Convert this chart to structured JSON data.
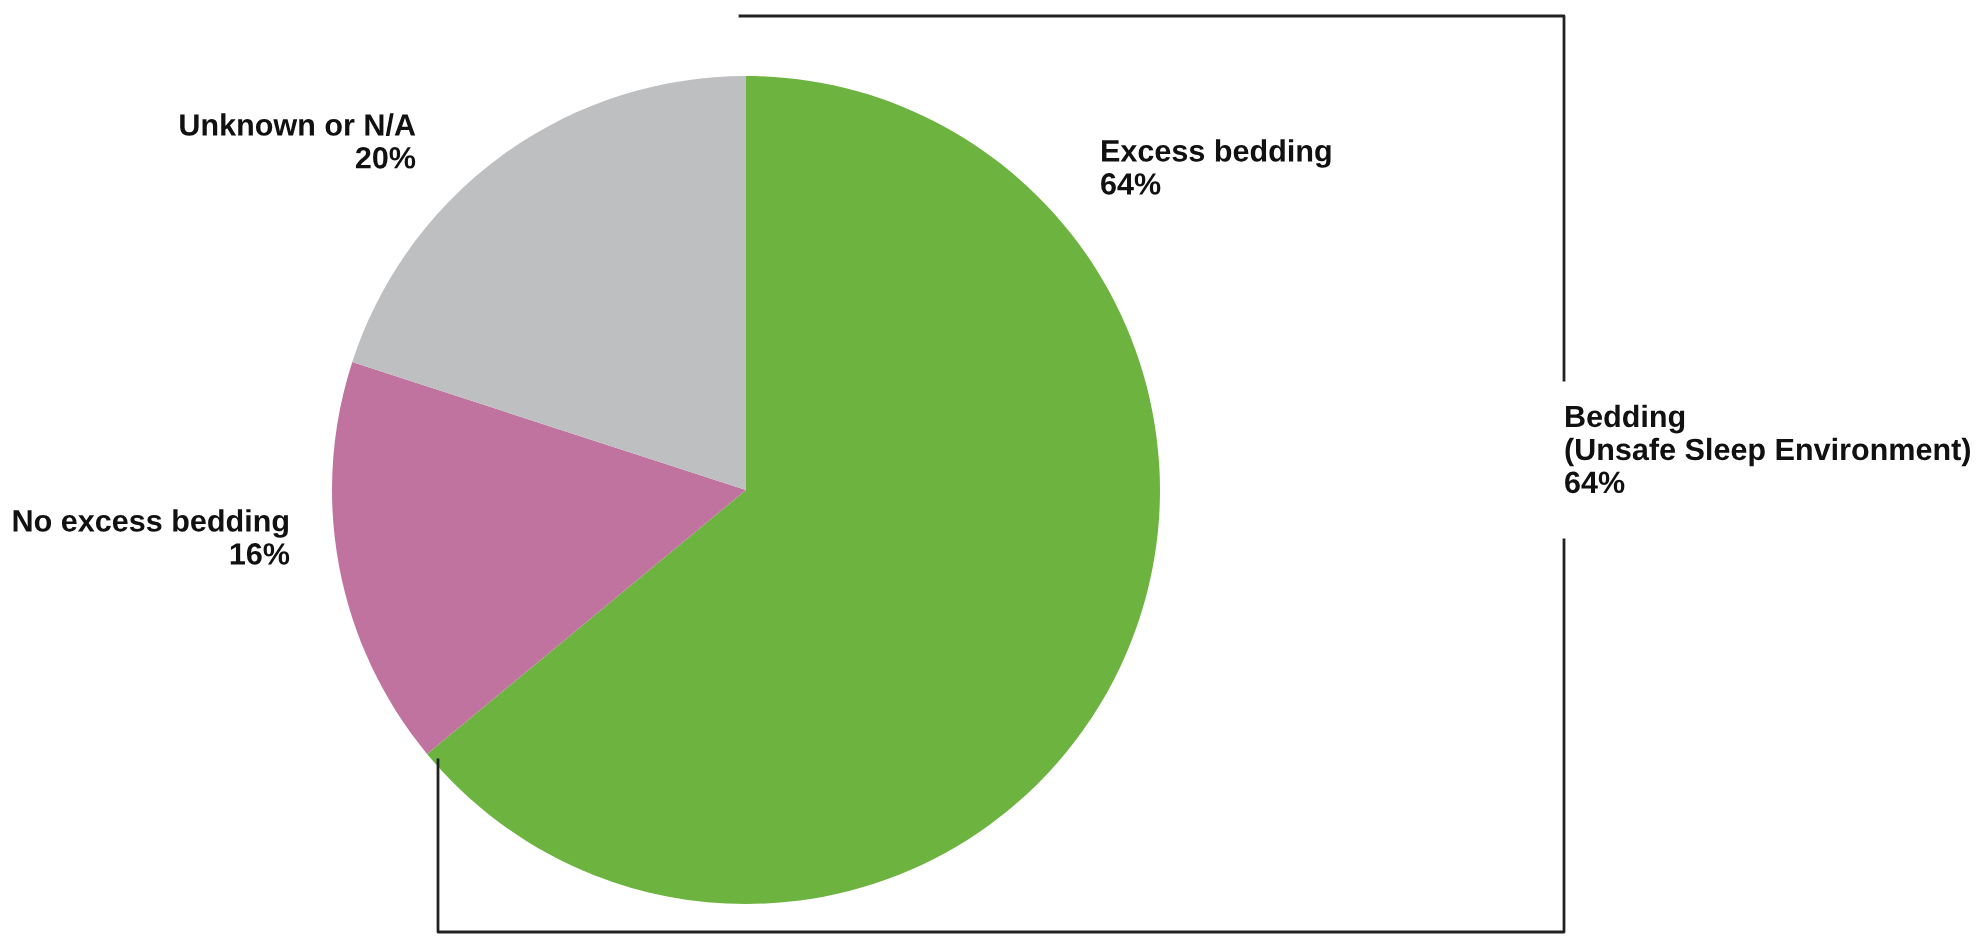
{
  "chart_data": {
    "type": "pie",
    "categories": [
      "Excess bedding",
      "No excess bedding",
      "Unknown or N/A"
    ],
    "values": [
      64,
      16,
      20
    ],
    "value_labels": [
      "64%",
      "16%",
      "20%"
    ],
    "colors": [
      "#6db33f",
      "#c0739f",
      "#bebfc1"
    ],
    "annotations": [
      "Bedding\n(Unsafe Sleep Environment)\n64%"
    ]
  }
}
